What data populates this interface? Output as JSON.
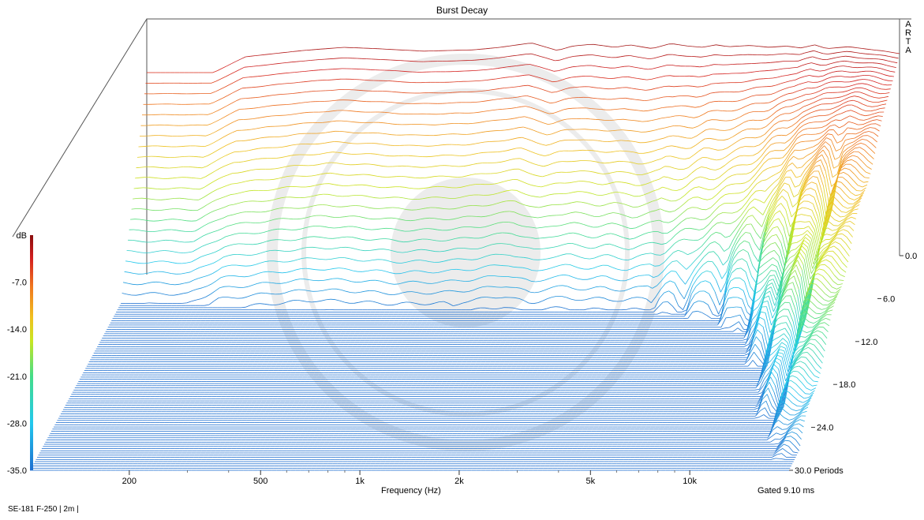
{
  "title": "Burst Decay",
  "watermark_letters": [
    "A",
    "R",
    "T",
    "A"
  ],
  "footer": "SE-181 F-250 | 2m |",
  "chart_data": {
    "type": "waterfall",
    "title": "Burst Decay",
    "xlabel": "Frequency (Hz)",
    "x_scale": "log",
    "xlim": [
      100,
      20000
    ],
    "x_ticks": [
      {
        "value": 200,
        "label": "200"
      },
      {
        "value": 500,
        "label": "500"
      },
      {
        "value": 1000,
        "label": "1k"
      },
      {
        "value": 2000,
        "label": "2k"
      },
      {
        "value": 5000,
        "label": "5k"
      },
      {
        "value": 10000,
        "label": "10k"
      }
    ],
    "x_minor_ticks": [
      300,
      400,
      600,
      700,
      800,
      900,
      3000,
      4000,
      6000,
      7000,
      8000,
      9000
    ],
    "depth_label": "Periods",
    "depth_ticks": [
      {
        "value": 0,
        "label": "0.0"
      },
      {
        "value": 6,
        "label": "6.0"
      },
      {
        "value": 12,
        "label": "12.0"
      },
      {
        "value": 18,
        "label": "18.0"
      },
      {
        "value": 24,
        "label": "24.0"
      },
      {
        "value": 30,
        "label": "30.0 Periods"
      }
    ],
    "zlabel": "dB",
    "zlim": [
      -35,
      0
    ],
    "z_ticks": [
      {
        "value": 0,
        "label": "dB"
      },
      {
        "value": -7,
        "label": "-7.0"
      },
      {
        "value": -14,
        "label": "-14.0"
      },
      {
        "value": -21,
        "label": "-21.0"
      },
      {
        "value": -28,
        "label": "-28.0"
      },
      {
        "value": -35,
        "label": "-35.0"
      }
    ],
    "gated_note": "Gated 9.10 ms",
    "colormap": [
      "#1e6fd0",
      "#22c8ee",
      "#44dd88",
      "#c8e622",
      "#f0c020",
      "#f07820",
      "#d42020",
      "#8a0e0e"
    ],
    "base_response": {
      "freqs": [
        160,
        200,
        300,
        400,
        500,
        700,
        1000,
        1200,
        1500,
        1800,
        2000,
        2300,
        2700,
        3000,
        3500,
        4000,
        4500,
        5000,
        5500,
        6000,
        7000,
        8000,
        9000,
        10000,
        11000,
        12000,
        14000,
        16000,
        18000,
        20000
      ],
      "db": [
        -6.0,
        -3.5,
        -2.5,
        -2.0,
        -2.2,
        -2.6,
        -2.4,
        -2.0,
        -1.3,
        -2.5,
        -1.8,
        -1.5,
        -2.0,
        -1.6,
        -2.2,
        -1.4,
        -1.8,
        -2.0,
        -1.6,
        -1.9,
        -1.7,
        -2.0,
        -1.8,
        -2.1,
        -1.6,
        -2.2,
        -1.9,
        -2.3,
        -2.6,
        -3.0
      ]
    },
    "dips": [
      {
        "freq": 1050,
        "depth": 9,
        "onset": 7
      },
      {
        "freq": 1650,
        "depth": 8,
        "onset": 9
      },
      {
        "freq": 2350,
        "depth": 7,
        "onset": 10
      },
      {
        "freq": 3100,
        "depth": 8,
        "onset": 8
      },
      {
        "freq": 4200,
        "depth": 9,
        "onset": 7
      },
      {
        "freq": 5300,
        "depth": 8,
        "onset": 6
      },
      {
        "freq": 7000,
        "depth": 8,
        "onset": 6
      },
      {
        "freq": 9000,
        "depth": 7,
        "onset": 5
      },
      {
        "freq": 11500,
        "depth": 6,
        "onset": 5
      },
      {
        "freq": 15000,
        "depth": 7,
        "onset": 4
      }
    ],
    "decay": [
      {
        "f": 160,
        "t": 8
      },
      {
        "f": 500,
        "t": 8
      },
      {
        "f": 1000,
        "t": 8
      },
      {
        "f": 2000,
        "t": 8
      },
      {
        "f": 4000,
        "t": 8
      },
      {
        "f": 5500,
        "t": 9
      },
      {
        "f": 7000,
        "t": 10
      },
      {
        "f": 8500,
        "t": 12
      },
      {
        "f": 10000,
        "t": 15
      },
      {
        "f": 12000,
        "t": 20
      },
      {
        "f": 14000,
        "t": 25
      },
      {
        "f": 16000,
        "t": 29
      },
      {
        "f": 18000,
        "t": 30
      },
      {
        "f": 20000,
        "t": 30
      }
    ]
  }
}
